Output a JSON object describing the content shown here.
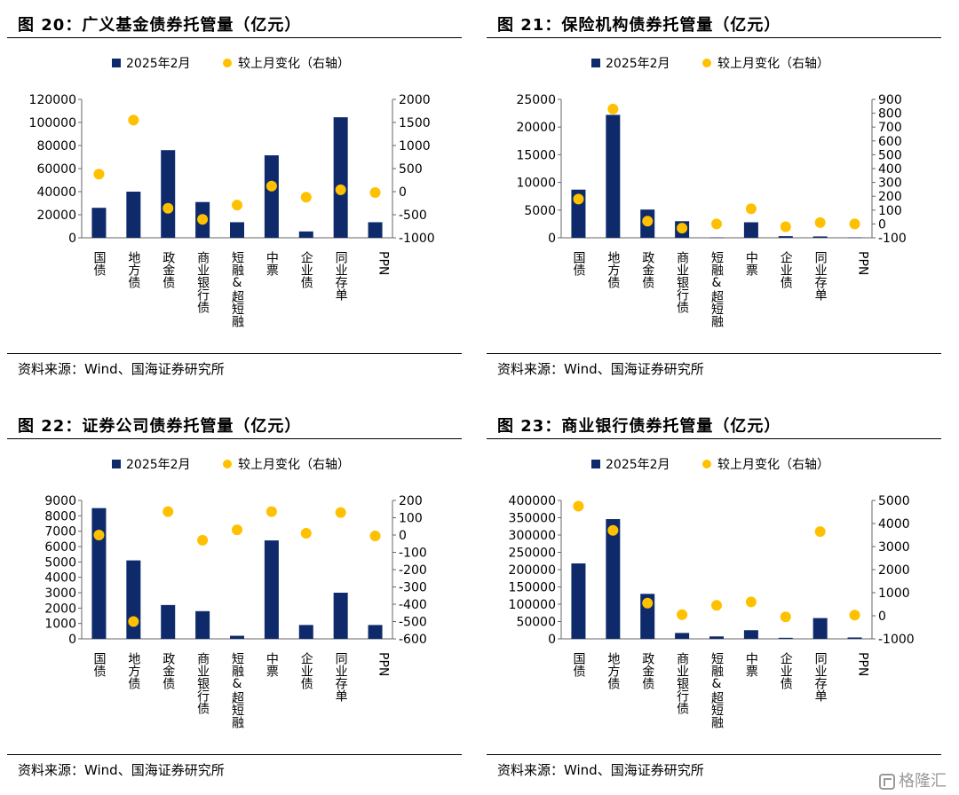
{
  "source_text": "资料来源：Wind、国海证券研究所",
  "watermark": "格隆汇",
  "colors": {
    "bar": "#0e2a6b",
    "dot": "#ffc000",
    "axis": "#666666"
  },
  "chart_data": [
    {
      "type": "bar",
      "title": "图 20：广义基金债券托管量（亿元）",
      "categories": [
        "国债",
        "地方债",
        "政金债",
        "商业银行债",
        "短融&超短融",
        "中票",
        "企业债",
        "同业存单",
        "PPN"
      ],
      "series": [
        {
          "name": "2025年2月",
          "type": "bar",
          "axis": "left",
          "values": [
            26000,
            40000,
            76000,
            31000,
            13500,
            71500,
            5500,
            104500,
            13500
          ]
        },
        {
          "name": "较上月变化（右轴）",
          "type": "scatter",
          "axis": "right",
          "values": [
            380,
            1550,
            -360,
            -600,
            -290,
            120,
            -120,
            40,
            -20
          ]
        }
      ],
      "ylim": [
        0,
        120000
      ],
      "yticks": [
        0,
        20000,
        40000,
        60000,
        80000,
        100000,
        120000
      ],
      "y2lim": [
        -1000,
        2000
      ],
      "y2ticks": [
        -1000,
        -500,
        0,
        500,
        1000,
        1500,
        2000
      ],
      "legend_position": "top"
    },
    {
      "type": "bar",
      "title": "图 21：保险机构债券托管量（亿元）",
      "categories": [
        "国债",
        "地方债",
        "政金债",
        "商业银行债",
        "短融&超短融",
        "中票",
        "企业债",
        "同业存单",
        "PPN"
      ],
      "series": [
        {
          "name": "2025年2月",
          "type": "bar",
          "axis": "left",
          "values": [
            8700,
            22200,
            5100,
            3000,
            50,
            2800,
            300,
            250,
            50
          ]
        },
        {
          "name": "较上月变化（右轴）",
          "type": "scatter",
          "axis": "right",
          "values": [
            180,
            830,
            20,
            -30,
            0,
            110,
            -20,
            10,
            0
          ]
        }
      ],
      "ylim": [
        0,
        25000
      ],
      "yticks": [
        0,
        5000,
        10000,
        15000,
        20000,
        25000
      ],
      "y2lim": [
        -100,
        900
      ],
      "y2ticks": [
        -100,
        0,
        100,
        200,
        300,
        400,
        500,
        600,
        700,
        800,
        900
      ],
      "legend_position": "top"
    },
    {
      "type": "bar",
      "title": "图 22：证券公司债券托管量（亿元）",
      "categories": [
        "国债",
        "地方债",
        "政金债",
        "商业银行债",
        "短融&超短融",
        "中票",
        "企业债",
        "同业存单",
        "PPN"
      ],
      "series": [
        {
          "name": "2025年2月",
          "type": "bar",
          "axis": "left",
          "values": [
            8500,
            5100,
            2200,
            1800,
            200,
            6400,
            900,
            3000,
            900
          ]
        },
        {
          "name": "较上月变化（右轴）",
          "type": "scatter",
          "axis": "right",
          "values": [
            0,
            -500,
            135,
            -30,
            30,
            135,
            10,
            130,
            -5
          ]
        }
      ],
      "ylim": [
        0,
        9000
      ],
      "yticks": [
        0,
        1000,
        2000,
        3000,
        4000,
        5000,
        6000,
        7000,
        8000,
        9000
      ],
      "y2lim": [
        -600,
        200
      ],
      "y2ticks": [
        -600,
        -500,
        -400,
        -300,
        -200,
        -100,
        0,
        100,
        200
      ],
      "legend_position": "top"
    },
    {
      "type": "bar",
      "title": "图 23：商业银行债券托管量（亿元）",
      "categories": [
        "国债",
        "地方债",
        "政金债",
        "商业银行债",
        "短融&超短融",
        "中票",
        "企业债",
        "同业存单",
        "PPN"
      ],
      "series": [
        {
          "name": "2025年2月",
          "type": "bar",
          "axis": "left",
          "values": [
            218000,
            346000,
            130000,
            17000,
            7000,
            25000,
            3000,
            60000,
            4000
          ]
        },
        {
          "name": "较上月变化（右轴）",
          "type": "scatter",
          "axis": "right",
          "values": [
            4750,
            3700,
            550,
            50,
            450,
            600,
            -50,
            3650,
            30
          ]
        }
      ],
      "ylim": [
        0,
        400000
      ],
      "yticks": [
        0,
        50000,
        100000,
        150000,
        200000,
        250000,
        300000,
        350000,
        400000
      ],
      "y2lim": [
        -1000,
        5000
      ],
      "y2ticks": [
        -1000,
        0,
        1000,
        2000,
        3000,
        4000,
        5000
      ],
      "legend_position": "top"
    }
  ]
}
